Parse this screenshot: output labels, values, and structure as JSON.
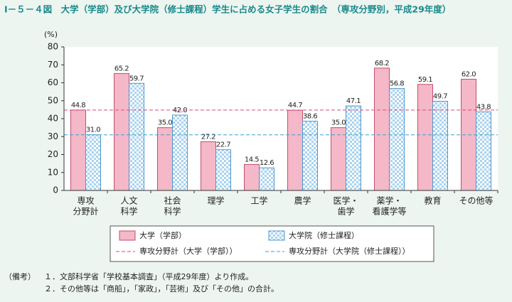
{
  "chart_data": {
    "type": "bar",
    "title": "Ⅰ－５－４図　大学（学部）及び大学院（修士課程）学生に占める女子学生の割合　（専攻分野別，平成29年度）",
    "y_label": "(%)",
    "categories": [
      [
        "専攻",
        "分野計"
      ],
      [
        "人文",
        "科学"
      ],
      [
        "社会",
        "科学"
      ],
      [
        "理学"
      ],
      [
        "工学"
      ],
      [
        "農学"
      ],
      [
        "医学・",
        "歯学"
      ],
      [
        "薬学・",
        "看護学等"
      ],
      [
        "教育"
      ],
      [
        "その他等"
      ]
    ],
    "series": [
      {
        "name": "大学（学部）",
        "color": "#f4b8c8",
        "values": [
          44.8,
          65.2,
          35.0,
          27.2,
          14.5,
          44.7,
          35.0,
          68.2,
          59.1,
          62.0
        ],
        "value_labels": [
          "44.8",
          "65.2",
          "35.0",
          "27.2",
          "14.5",
          "44.7",
          "35.0",
          "68.2",
          "59.1",
          "62.0"
        ]
      },
      {
        "name": "大学院（修士課程）",
        "color": "#a9d3ee",
        "values": [
          31.0,
          59.7,
          42.0,
          22.7,
          12.6,
          38.6,
          47.1,
          56.8,
          49.7,
          43.8
        ],
        "value_labels": [
          "31.0",
          "59.7",
          "42.0",
          "22.7",
          "12.6",
          "38.6",
          "47.1",
          "56.8",
          "49.7",
          "43.8"
        ]
      }
    ],
    "reference_lines": [
      {
        "name": "専攻分野計（大学（学部））",
        "value": 44.8,
        "color": "#d9487a"
      },
      {
        "name": "専攻分野計（大学院（修士課程））",
        "value": 31.0,
        "color": "#3c9fd0"
      }
    ],
    "ylim": [
      0,
      80
    ],
    "yticks": [
      0,
      10,
      20,
      30,
      40,
      50,
      60,
      70,
      80
    ],
    "notes": {
      "prefix": "（備考）",
      "items": [
        "１．文部科学省「学校基本調査」（平成29年度）より作成。",
        "２．その他等は「商船」，「家政」，「芸術」及び「その他」の合計。"
      ]
    }
  }
}
